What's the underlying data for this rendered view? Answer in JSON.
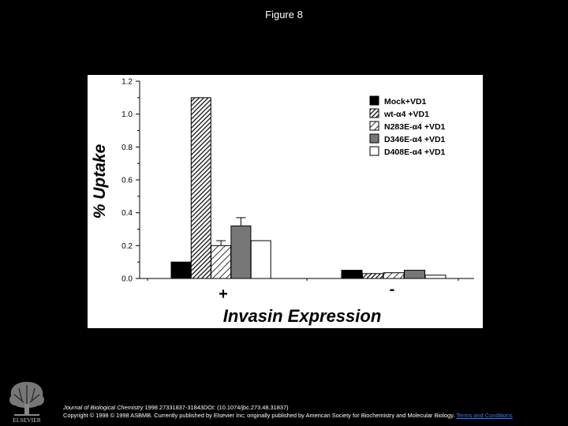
{
  "slide": {
    "title": "Figure 8"
  },
  "chart_data": {
    "type": "bar",
    "title": "",
    "ylabel": "% Uptake",
    "xlabel": "Invasin Expression",
    "categories": [
      "+",
      "-"
    ],
    "ylim": [
      0,
      1.2
    ],
    "yticks": [
      "0.0",
      "0.2",
      "0.4",
      "0.6",
      "0.8",
      "1.0",
      "1.2"
    ],
    "grid": false,
    "legend_position": "top-right",
    "series": [
      {
        "name": "Mock+VD1",
        "values": [
          0.1,
          0.05
        ],
        "errors": [
          0.0,
          0.0
        ],
        "fill": "black"
      },
      {
        "name": "wt-α4 +VD1",
        "values": [
          1.1,
          0.03
        ],
        "errors": [
          0.0,
          0.0
        ],
        "fill": "hatch-dense"
      },
      {
        "name": "N283E-α4 +VD1",
        "values": [
          0.2,
          0.035
        ],
        "errors": [
          0.03,
          0.0
        ],
        "fill": "hatch-light"
      },
      {
        "name": "D346E-α4 +VD1",
        "values": [
          0.32,
          0.05
        ],
        "errors": [
          0.05,
          0.0
        ],
        "fill": "gray"
      },
      {
        "name": "D408E-α4 +VD1",
        "values": [
          0.23,
          0.02
        ],
        "errors": [
          0.0,
          0.0
        ],
        "fill": "white"
      }
    ]
  },
  "footer": {
    "journal": "Journal of Biological Chemistry",
    "citation": " 1998 27331837-31843DOI: (10.1074/jbc.273.48.31837)",
    "copyright": "Copyright © 1998 © 1998 ASBMB. Currently published by Elsevier Inc; originally published by American Society for Biochemistry and Molecular Biology.",
    "terms_link": "Terms and Conditions",
    "publisher_logo_text": "ELSEVIER"
  }
}
